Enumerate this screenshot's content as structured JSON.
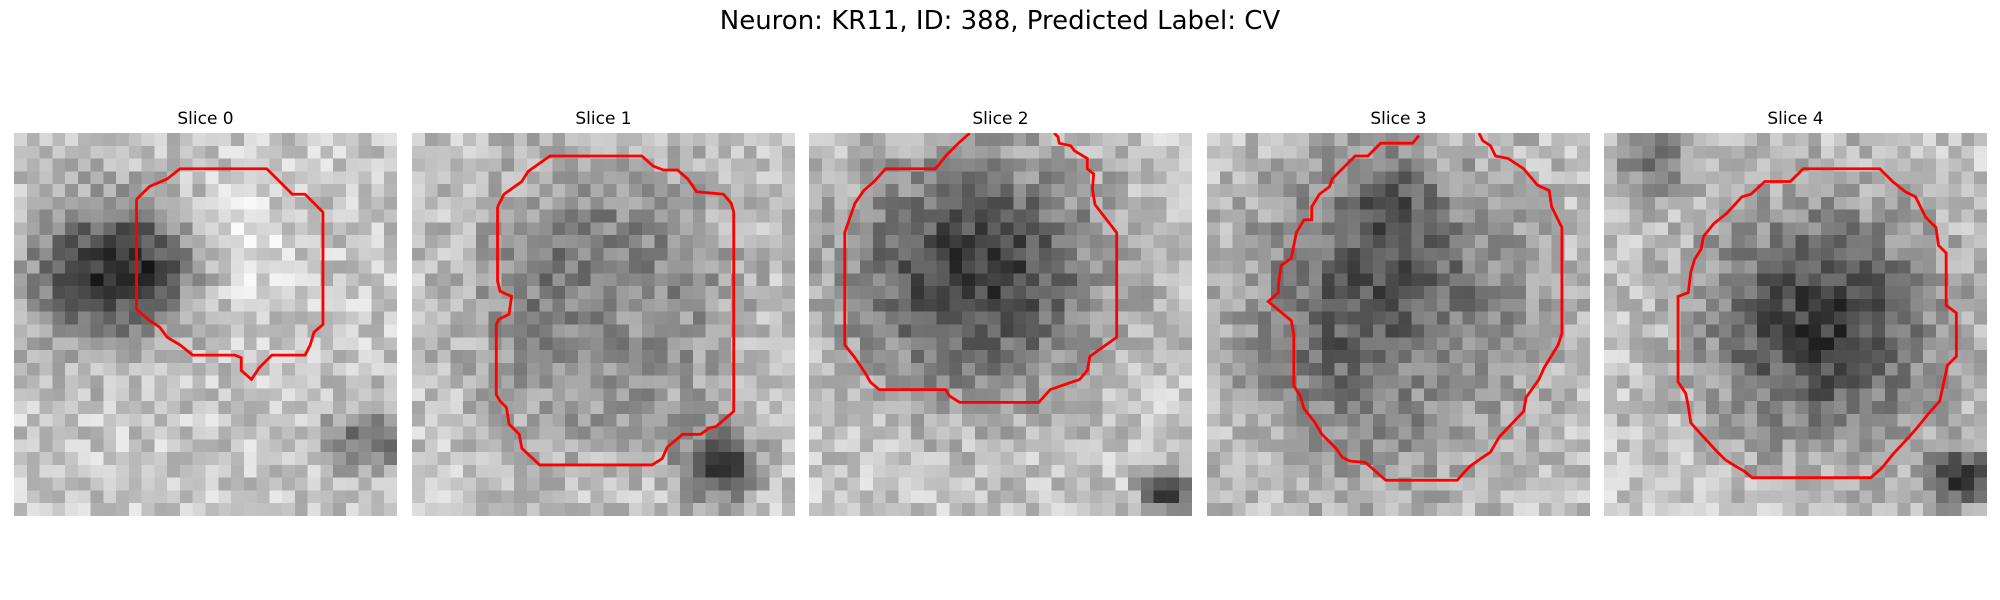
{
  "figure": {
    "title": "Neuron: KR11, ID: 388, Predicted Label: CV",
    "outline_color": "#ff0000"
  },
  "panels": [
    {
      "title": "Slice 0"
    },
    {
      "title": "Slice 1"
    },
    {
      "title": "Slice 2"
    },
    {
      "title": "Slice 3"
    },
    {
      "title": "Slice 4"
    }
  ]
}
